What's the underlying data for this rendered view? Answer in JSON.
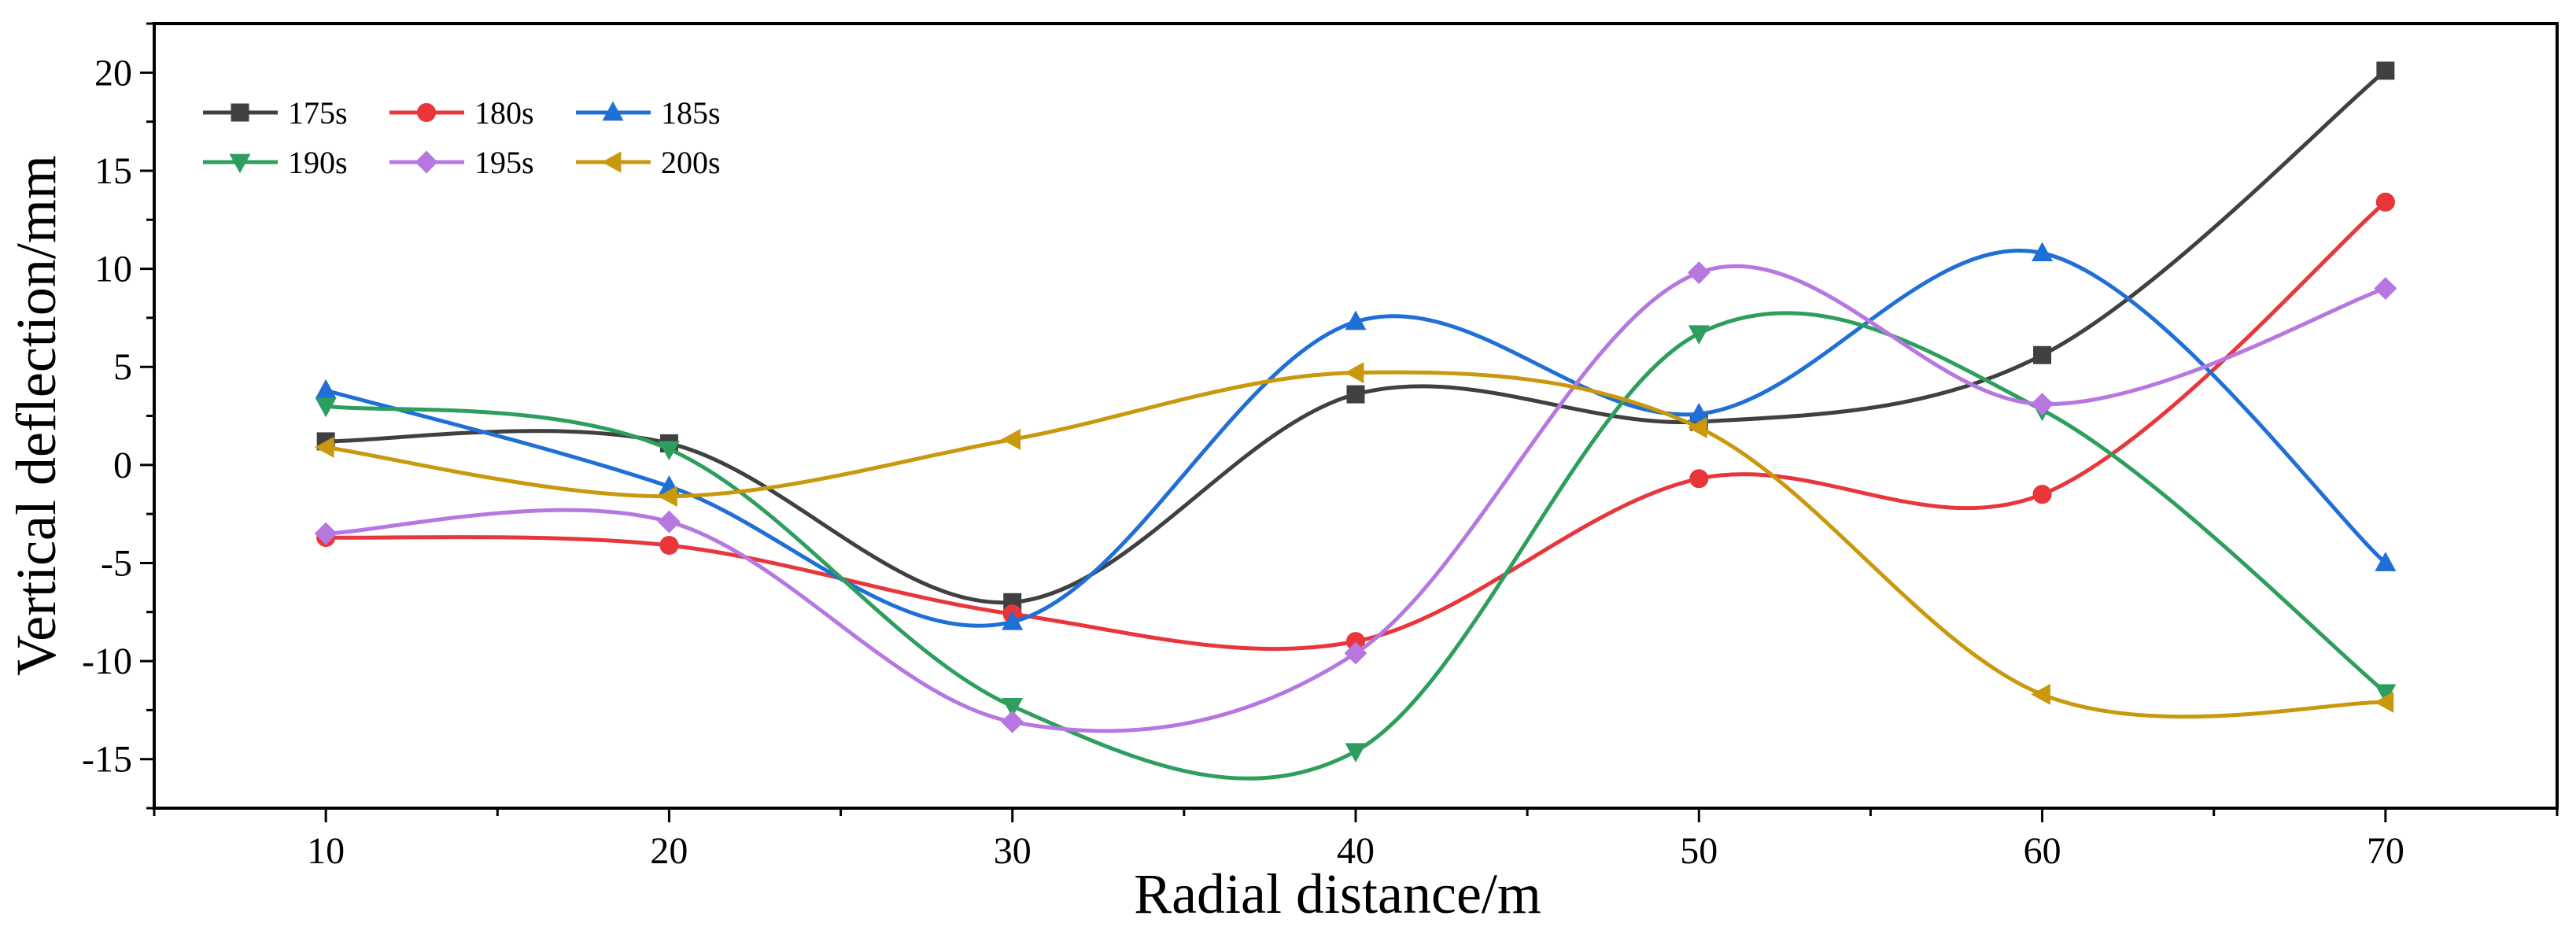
{
  "chart_data": {
    "type": "line",
    "smooth": true,
    "title": "",
    "xlabel": "Radial distance/m",
    "ylabel": "Vertical deflection/mm",
    "x": [
      10,
      20,
      30,
      40,
      50,
      60,
      70
    ],
    "xlim": [
      5,
      75
    ],
    "ylim": [
      -17.5,
      22.5
    ],
    "xticks": [
      10,
      20,
      30,
      40,
      50,
      60,
      70
    ],
    "yticks": [
      -15,
      -10,
      -5,
      0,
      5,
      10,
      15,
      20
    ],
    "grid": false,
    "legend_position": "top-left",
    "series": [
      {
        "name": "175s",
        "color": "#404040",
        "marker": "square",
        "values": [
          1.2,
          1.1,
          -7.0,
          3.6,
          2.2,
          5.6,
          20.1
        ]
      },
      {
        "name": "180s",
        "color": "#e8363b",
        "marker": "circle",
        "values": [
          -3.7,
          -4.1,
          -7.6,
          -9.0,
          -0.7,
          -1.5,
          13.4
        ]
      },
      {
        "name": "185s",
        "color": "#1f6fd6",
        "marker": "triangle-up",
        "values": [
          3.8,
          -1.1,
          -8.0,
          7.3,
          2.6,
          10.8,
          -5.0
        ]
      },
      {
        "name": "190s",
        "color": "#2e9e5e",
        "marker": "triangle-down",
        "values": [
          3.0,
          0.8,
          -12.3,
          -14.6,
          6.7,
          2.8,
          -11.6
        ]
      },
      {
        "name": "195s",
        "color": "#b678e0",
        "marker": "diamond",
        "values": [
          -3.5,
          -2.9,
          -13.1,
          -9.6,
          9.8,
          3.1,
          9.0
        ]
      },
      {
        "name": "200s",
        "color": "#c9980c",
        "marker": "triangle-left",
        "values": [
          0.9,
          -1.6,
          1.3,
          4.7,
          1.9,
          -11.7,
          -12.1
        ]
      }
    ]
  }
}
